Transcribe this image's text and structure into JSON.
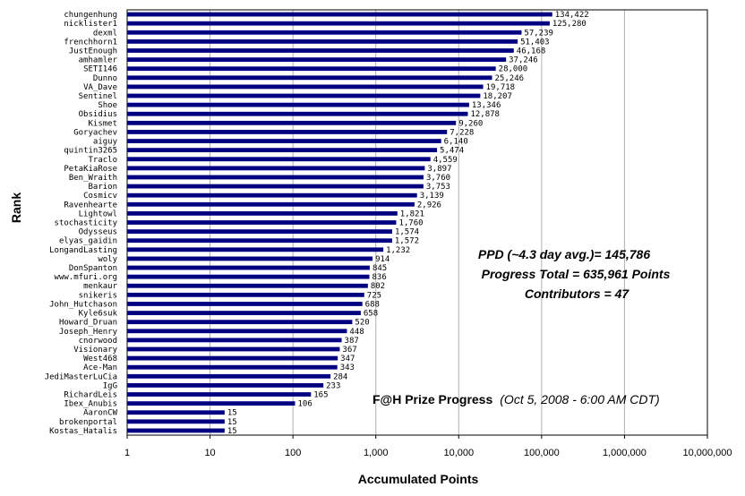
{
  "chart_data": {
    "type": "bar",
    "orientation": "horizontal",
    "x_scale": "log",
    "xlim": [
      1,
      10000000
    ],
    "xlabel": "Accumulated Points",
    "ylabel": "Rank",
    "x_tick_labels": [
      "1",
      "10",
      "100",
      "1,000",
      "10,000",
      "100,000",
      "1,000,000",
      "10,000,000"
    ],
    "grid": "vertical",
    "bar_color": "#000080",
    "categories": [
      "chungenhung",
      "nicklister1",
      "dexml",
      "frenchhorn1",
      "JustEnough",
      "amhamler",
      "SETI146",
      "Dunno",
      "VA_Dave",
      "Sentinel",
      "Shoe",
      "Obsidius",
      "Kismet",
      "Goryachev",
      "aiguy",
      "quintin3265",
      "Traclo",
      "PetaKiaRose",
      "Ben_Wraith",
      "Barion",
      "Cosmicv",
      "Ravenhearte",
      "Lightowl",
      "stochasticity",
      "Odysseus",
      "elyas_gaidin",
      "LongandLasting",
      "woly",
      "DonSpanton",
      "www.mfuri.org",
      "menkaur",
      "snikeris",
      "John_Hutchason",
      "Kyle6suk",
      "Howard_Druan",
      "Joseph_Henry",
      "cnorwood",
      "Visionary",
      "West468",
      "Ace-Man",
      "JediMasterLuCia",
      "IgG",
      "RichardLeis",
      "Ibex_Anubis",
      "AaronCW",
      "brokenportal",
      "Kostas_Hatalis"
    ],
    "values": [
      134422,
      125280,
      57239,
      51403,
      46168,
      37246,
      28000,
      25246,
      19718,
      18207,
      13346,
      12878,
      9260,
      7228,
      6140,
      5474,
      4559,
      3897,
      3760,
      3753,
      3139,
      2926,
      1821,
      1760,
      1574,
      1572,
      1232,
      914,
      845,
      836,
      802,
      725,
      688,
      658,
      520,
      448,
      387,
      367,
      347,
      343,
      284,
      233,
      165,
      106,
      15,
      15,
      15
    ],
    "value_labels": [
      "134,422",
      "125,280",
      "57,239",
      "51,403",
      "46,168",
      "37,246",
      "28,000",
      "25,246",
      "19,718",
      "18,207",
      "13,346",
      "12,878",
      "9,260",
      "7,228",
      "6,140",
      "5,474",
      "4,559",
      "3,897",
      "3,760",
      "3,753",
      "3,139",
      "2,926",
      "1,821",
      "1,760",
      "1,574",
      "1,572",
      "1,232",
      "914",
      "845",
      "836",
      "802",
      "725",
      "688",
      "658",
      "520",
      "448",
      "387",
      "367",
      "347",
      "343",
      "284",
      "233",
      "165",
      "106",
      "15",
      "15",
      "15"
    ],
    "annotations": {
      "ppd": "PPD (~4.3 day avg.)= 145,786",
      "progress": "Progress Total = 635,961 Points",
      "contributors": "Contributors = 47"
    },
    "footer": {
      "title": "F@H Prize Progress",
      "date": "(Oct 5, 2008 - 6:00 AM CDT)"
    }
  }
}
